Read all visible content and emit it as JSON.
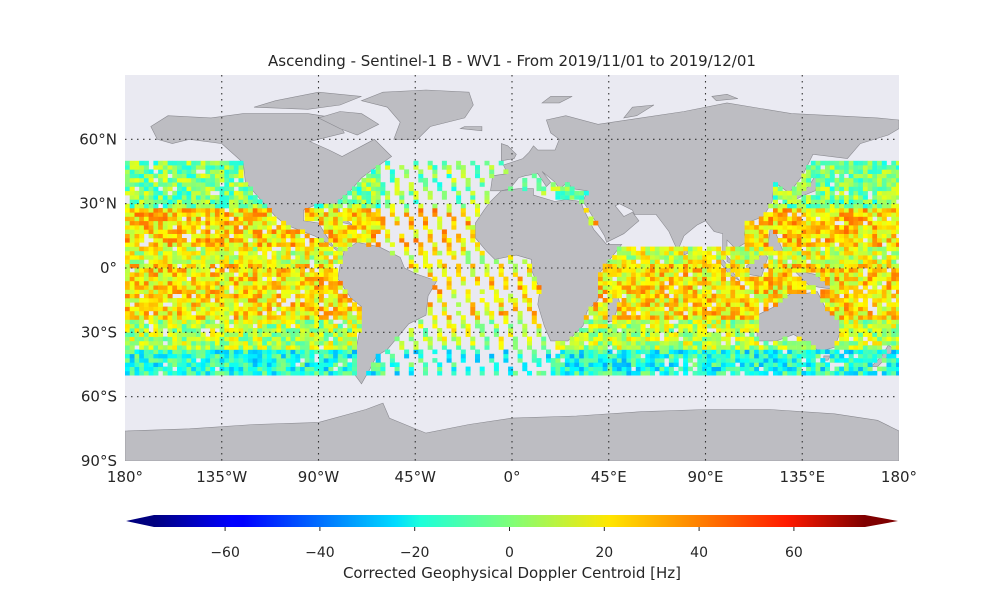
{
  "figure": {
    "title": "Ascending - Sentinel-1 B - WV1 - From 2019/11/01 to 2019/12/01"
  },
  "map": {
    "projection": "equirectangular",
    "lon_range": [
      -180,
      180
    ],
    "lat_range": [
      -90,
      90
    ],
    "ocean_color": "#eaeaf2",
    "land_color": "#bdbdc2",
    "gridline_style": "dotted",
    "lon_ticks": [
      {
        "value": -180,
        "label": "180°"
      },
      {
        "value": -135,
        "label": "135°W"
      },
      {
        "value": -90,
        "label": "90°W"
      },
      {
        "value": -45,
        "label": "45°W"
      },
      {
        "value": 0,
        "label": "0°"
      },
      {
        "value": 45,
        "label": "45°E"
      },
      {
        "value": 90,
        "label": "90°E"
      },
      {
        "value": 135,
        "label": "135°E"
      },
      {
        "value": 180,
        "label": "180°"
      }
    ],
    "lat_ticks": [
      {
        "value": 60,
        "label": "60°N"
      },
      {
        "value": 30,
        "label": "30°N"
      },
      {
        "value": 0,
        "label": "0°"
      },
      {
        "value": -30,
        "label": "30°S"
      },
      {
        "value": -60,
        "label": "60°S"
      },
      {
        "value": -90,
        "label": "90°S"
      }
    ],
    "data_lat_range": [
      -50,
      50
    ]
  },
  "colorbar": {
    "label": "Corrected Geophysical Doppler Centroid [Hz]",
    "colormap": "jet",
    "range": [
      -75,
      75
    ],
    "extend": "both",
    "ticks": [
      {
        "value": -60,
        "label": "−60"
      },
      {
        "value": -40,
        "label": "−40"
      },
      {
        "value": -20,
        "label": "−20"
      },
      {
        "value": 0,
        "label": "0"
      },
      {
        "value": 20,
        "label": "20"
      },
      {
        "value": 40,
        "label": "40"
      },
      {
        "value": 60,
        "label": "60"
      }
    ]
  }
}
